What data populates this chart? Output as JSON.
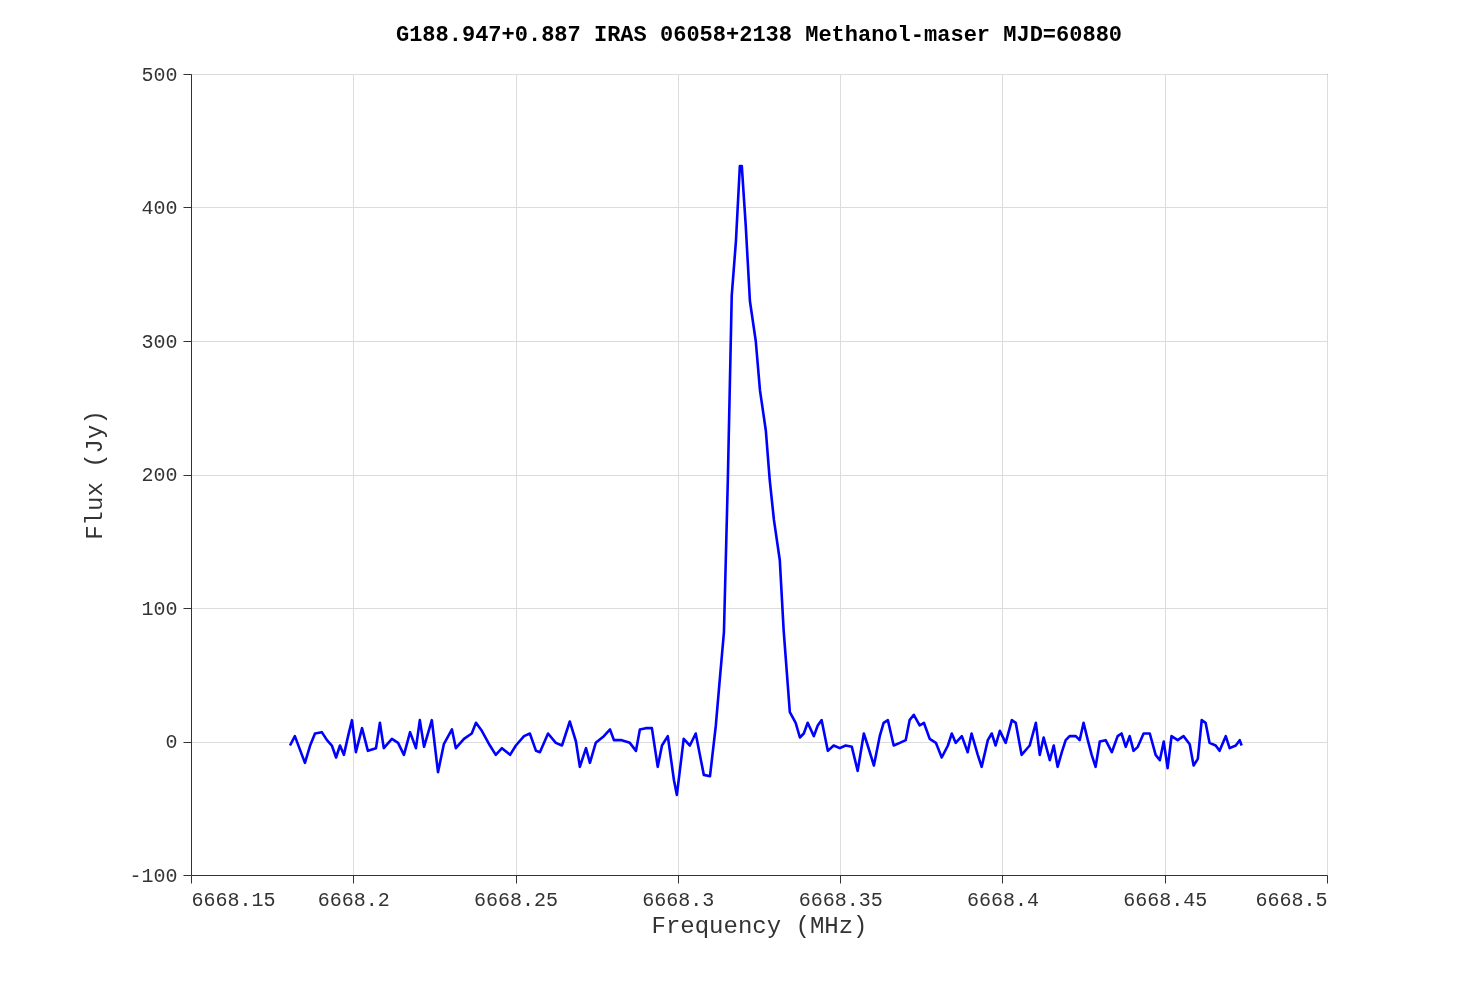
{
  "chart_data": {
    "type": "line",
    "title": "G188.947+0.887 IRAS 06058+2138 Methanol-maser MJD=60880",
    "xlabel": "Frequency (MHz)",
    "ylabel": "Flux (Jy)",
    "xlim": [
      6668.15,
      6668.5
    ],
    "xticks": [
      6668.15,
      6668.2,
      6668.25,
      6668.3,
      6668.35,
      6668.4,
      6668.45,
      6668.5
    ],
    "ylim": [
      -100,
      500
    ],
    "yticks": [
      -100,
      0,
      100,
      200,
      300,
      400,
      500
    ],
    "grid": true,
    "series": [
      {
        "color": "#0000ff",
        "x": [
          6668.1805,
          6668.182,
          6668.1851,
          6668.1867,
          6668.1882,
          6668.1903,
          6668.1919,
          6668.1934,
          6668.1947,
          6668.1959,
          6668.1971,
          6668.1984,
          6668.1996,
          6668.2008,
          6668.2027,
          6668.2045,
          6668.207,
          6668.2082,
          6668.2094,
          6668.2119,
          6668.2138,
          6668.2156,
          6668.2175,
          6668.2193,
          6668.2205,
          6668.2218,
          6668.2242,
          6668.2261,
          6668.2279,
          6668.2304,
          6668.2316,
          6668.2341,
          6668.2365,
          6668.2378,
          6668.2396,
          6668.2421,
          6668.2439,
          6668.2458,
          6668.2483,
          6668.2501,
          6668.2526,
          6668.2544,
          6668.2563,
          6668.2575,
          6668.26,
          6668.2624,
          6668.2643,
          6668.2667,
          6668.2686,
          6668.2698,
          6668.2717,
          6668.2729,
          6668.2747,
          6668.2772,
          6668.2791,
          6668.2803,
          6668.2827,
          6668.2852,
          6668.2871,
          6668.2883,
          6668.2901,
          6668.292,
          6668.2938,
          6668.2951,
          6668.2969,
          6668.2988,
          6668.2997,
          6668.3006,
          6668.3018,
          6668.3037,
          6668.3055,
          6668.308,
          6668.3099,
          6668.3117,
          6668.3129,
          6668.3142,
          6668.3154,
          6668.3166,
          6668.3179,
          6668.3191,
          6668.3197,
          6668.3209,
          6668.3222,
          6668.324,
          6668.3253,
          6668.3271,
          6668.3283,
          6668.3296,
          6668.3314,
          6668.3326,
          6668.3345,
          6668.3363,
          6668.3376,
          6668.3388,
          6668.34,
          6668.3419,
          6668.3431,
          6668.3443,
          6668.3462,
          6668.348,
          6668.3499,
          6668.3517,
          6668.3536,
          6668.3554,
          6668.3573,
          6668.3585,
          6668.3604,
          6668.3622,
          6668.3634,
          6668.3647,
          6668.3665,
          6668.3684,
          6668.3702,
          6668.3714,
          6668.3727,
          6668.3745,
          6668.3758,
          6668.3776,
          6668.3795,
          6668.3813,
          6668.3832,
          6668.3844,
          6668.3856,
          6668.3875,
          6668.3893,
          6668.3905,
          6668.3924,
          6668.3936,
          6668.3955,
          6668.3967,
          6668.3979,
          6668.3992,
          6668.401,
          6668.4029,
          6668.4041,
          6668.4059,
          6668.4084,
          6668.4103,
          6668.4115,
          6668.4127,
          6668.4146,
          6668.4158,
          6668.417,
          6668.4183,
          6668.4195,
          6668.4207,
          6668.4226,
          6668.4238,
          6668.425,
          6668.4263,
          6668.4275,
          6668.4287,
          6668.43,
          6668.4318,
          6668.4337,
          6668.4355,
          6668.4367,
          6668.438,
          6668.4392,
          6668.4404,
          6668.4417,
          6668.4435,
          6668.4454,
          6668.4472,
          6668.4485,
          6668.4497,
          6668.4509,
          6668.4521,
          6668.454,
          6668.4558,
          6668.4577,
          6668.4589,
          6668.4602,
          6668.4614,
          6668.4626,
          6668.4638,
          6668.4657,
          6668.4669,
          6668.4688,
          6668.47,
          6668.4719,
          6668.4731,
          6668.4737
        ],
        "values": [
          -3,
          4,
          -16,
          -3,
          6,
          7,
          1,
          -3,
          -12,
          -3,
          -10,
          4,
          16,
          -8,
          10,
          -7,
          -5,
          14,
          -5,
          2,
          -1,
          -10,
          7,
          -5,
          16,
          -4,
          16,
          -23,
          -2,
          9,
          -5,
          2,
          6,
          14,
          8,
          -3,
          -10,
          -5,
          -10,
          -3,
          4,
          6,
          -7,
          -8,
          6,
          -1,
          -3,
          15,
          0,
          -19,
          -5,
          -16,
          -1,
          4,
          9,
          1,
          1,
          -1,
          -7,
          9,
          10,
          10,
          -19,
          -3,
          4,
          -29,
          -40,
          -22,
          2,
          -3,
          6,
          -25,
          -26,
          12,
          46,
          82,
          196,
          334,
          375,
          431,
          431,
          387,
          330,
          300,
          263,
          233,
          196,
          166,
          136,
          83,
          22,
          14,
          3,
          6,
          14,
          4,
          12,
          16,
          -7,
          -3,
          -5,
          -3,
          -4,
          -22,
          6,
          -3,
          -18,
          4,
          14,
          16,
          -3,
          -1,
          1,
          16,
          20,
          12,
          14,
          2,
          -1,
          -12,
          -3,
          6,
          -1,
          4,
          -8,
          6,
          -10,
          -19,
          1,
          6,
          -3,
          8,
          -1,
          16,
          14,
          -10,
          -3,
          14,
          -10,
          3,
          -14,
          -3,
          -19,
          -8,
          1,
          4,
          4,
          1,
          14,
          1,
          -10,
          -19,
          0,
          1,
          -8,
          4,
          6,
          -4,
          4,
          -7,
          -4,
          6,
          6,
          -10,
          -14,
          0,
          -20,
          4,
          1,
          4,
          -2,
          -18,
          -13,
          16,
          14,
          -1,
          -3,
          -7,
          4,
          -5,
          -3,
          1,
          -3
        ]
      }
    ]
  }
}
